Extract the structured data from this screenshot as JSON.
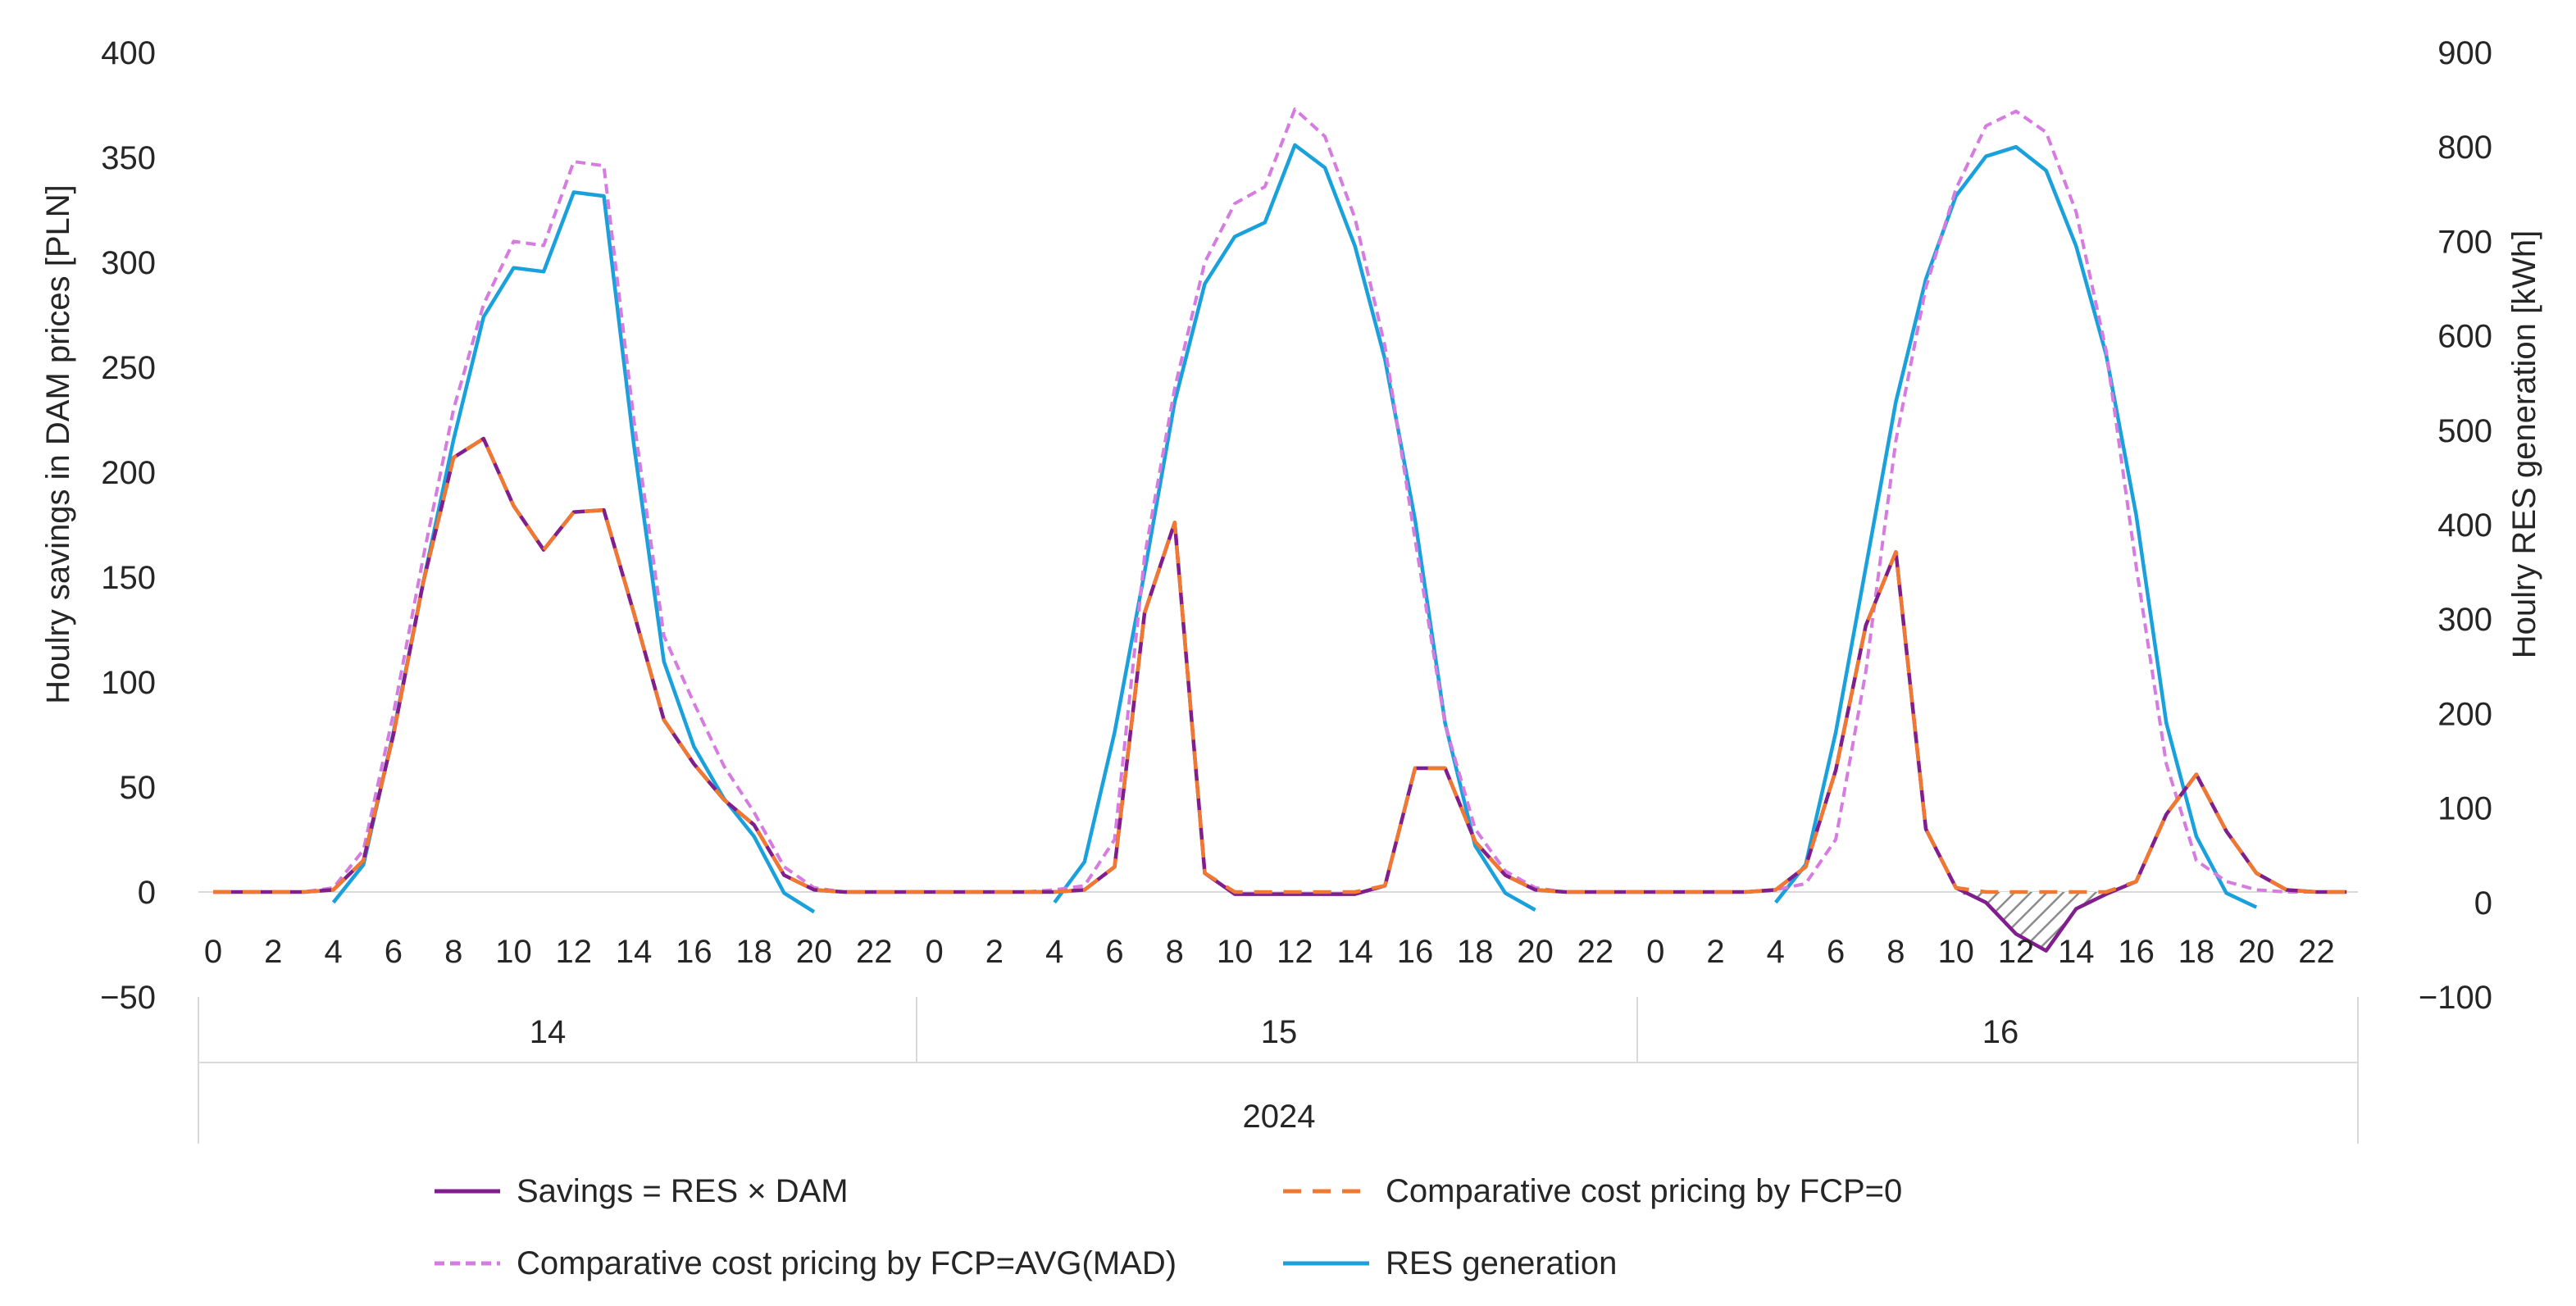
{
  "chart_data": {
    "type": "line",
    "title": "",
    "ylabel": "Houlry savings  in DAM prices [PLN]",
    "y2label": "Houlry RES generation  [kWh]",
    "ylim": [
      -50,
      400
    ],
    "y2lim": [
      -100,
      900
    ],
    "yticks": [
      "−50",
      "0",
      "50",
      "100",
      "150",
      "200",
      "250",
      "300",
      "350",
      "400"
    ],
    "y2ticks": [
      "−100",
      "0",
      "100",
      "200",
      "300",
      "400",
      "500",
      "600",
      "700",
      "800",
      "900"
    ],
    "x_hour_labels": [
      "0",
      "2",
      "4",
      "6",
      "8",
      "10",
      "12",
      "14",
      "16",
      "18",
      "20",
      "22"
    ],
    "x_day_labels": [
      "14",
      "15",
      "16"
    ],
    "x_year_label": "2024",
    "legend_position": "bottom",
    "colors": {
      "savings": "#7F1E8C",
      "fcp0": "#F07830",
      "fcpavg": "#D67BE0",
      "res": "#1AA1DC",
      "axis": "#d9d9d9",
      "text": "#262626"
    },
    "series": [
      {
        "key": "savings",
        "name": "Savings = RES × DAM",
        "axis": "left",
        "values": [
          0,
          0,
          0,
          0,
          1,
          15,
          75,
          148,
          207,
          216,
          184,
          163,
          181,
          182,
          133,
          82,
          61,
          44,
          32,
          8,
          1,
          0,
          0,
          0,
          0,
          0,
          0,
          0,
          0,
          1,
          12,
          133,
          176,
          9,
          -1,
          -1,
          -1,
          -1,
          -1,
          3,
          59,
          59,
          24,
          8,
          1,
          0,
          0,
          0,
          0,
          0,
          0,
          0,
          1,
          12,
          58,
          127,
          162,
          30,
          2,
          -5,
          -20,
          -28,
          -8,
          -1,
          5,
          37,
          56,
          29,
          9,
          1,
          0,
          0
        ]
      },
      {
        "key": "fcp0",
        "name": "Comparative cost pricing by FCP=0",
        "axis": "left",
        "dashed": true,
        "values": [
          0,
          0,
          0,
          0,
          1,
          15,
          75,
          148,
          207,
          216,
          184,
          163,
          181,
          182,
          133,
          82,
          61,
          44,
          32,
          8,
          1,
          0,
          0,
          0,
          0,
          0,
          0,
          0,
          0,
          1,
          12,
          133,
          176,
          9,
          0,
          0,
          0,
          0,
          0,
          3,
          59,
          59,
          24,
          8,
          1,
          0,
          0,
          0,
          0,
          0,
          0,
          0,
          1,
          12,
          58,
          127,
          162,
          30,
          2,
          0,
          0,
          0,
          0,
          0,
          5,
          37,
          56,
          29,
          9,
          1,
          0,
          0
        ]
      },
      {
        "key": "fcpavg",
        "name": "Comparative cost pricing by FCP=AVG(MAD)",
        "axis": "left",
        "dashed": true,
        "values": [
          0,
          0,
          0,
          0,
          2,
          20,
          85,
          160,
          230,
          280,
          310,
          308,
          348,
          346,
          225,
          122,
          90,
          60,
          38,
          12,
          2,
          0,
          0,
          0,
          0,
          0,
          0,
          0,
          1,
          3,
          25,
          160,
          240,
          300,
          328,
          336,
          373,
          360,
          321,
          260,
          168,
          80,
          30,
          10,
          2,
          0,
          0,
          0,
          0,
          0,
          0,
          0,
          1,
          4,
          25,
          105,
          215,
          288,
          335,
          365,
          372,
          362,
          324,
          258,
          155,
          61,
          15,
          5,
          1,
          0,
          0,
          0
        ]
      },
      {
        "key": "res",
        "name": "RES generation",
        "axis": "right",
        "values": [
          null,
          null,
          null,
          null,
          0,
          40,
          180,
          340,
          490,
          620,
          672,
          668,
          752,
          748,
          485,
          255,
          165,
          110,
          70,
          10,
          -10,
          null,
          null,
          null,
          null,
          null,
          null,
          null,
          0,
          43,
          180,
          350,
          530,
          655,
          705,
          720,
          802,
          778,
          695,
          575,
          405,
          190,
          60,
          10,
          -8,
          null,
          null,
          null,
          null,
          null,
          null,
          null,
          0,
          40,
          180,
          355,
          530,
          660,
          748,
          790,
          800,
          775,
          695,
          580,
          410,
          190,
          70,
          10,
          -5,
          null,
          null,
          null
        ]
      }
    ],
    "annotations": [
      "hatched area between FCP=0 and savings lines, day 16, hours 10–14"
    ]
  }
}
